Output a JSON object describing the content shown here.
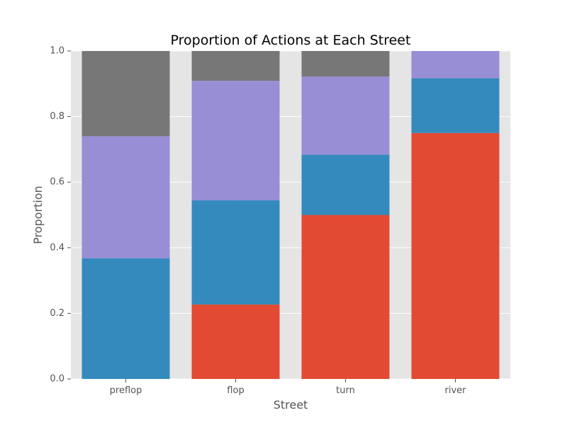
{
  "chart_data": {
    "type": "bar",
    "stacked": true,
    "title": "Proportion of Actions at Each Street",
    "xlabel": "Street",
    "ylabel": "Proportion",
    "categories": [
      "preflop",
      "flop",
      "turn",
      "river"
    ],
    "ylim": [
      0,
      1.0
    ],
    "yticks": [
      0.0,
      0.2,
      0.4,
      0.6,
      0.8,
      1.0
    ],
    "ytick_labels": [
      "0.0",
      "0.2",
      "0.4",
      "0.6",
      "0.8",
      "1.0"
    ],
    "grid": true,
    "legend": false,
    "series": [
      {
        "color": "#E24A33",
        "values": [
          0.0,
          0.227,
          0.5,
          0.75
        ]
      },
      {
        "color": "#348ABD",
        "values": [
          0.368,
          0.318,
          0.184,
          0.167
        ]
      },
      {
        "color": "#988ED5",
        "values": [
          0.372,
          0.364,
          0.238,
          0.083
        ]
      },
      {
        "color": "#777777",
        "values": [
          0.26,
          0.091,
          0.078,
          0.0
        ]
      }
    ],
    "plot_background": "#E5E5E5",
    "grid_color": "#FFFFFF"
  }
}
